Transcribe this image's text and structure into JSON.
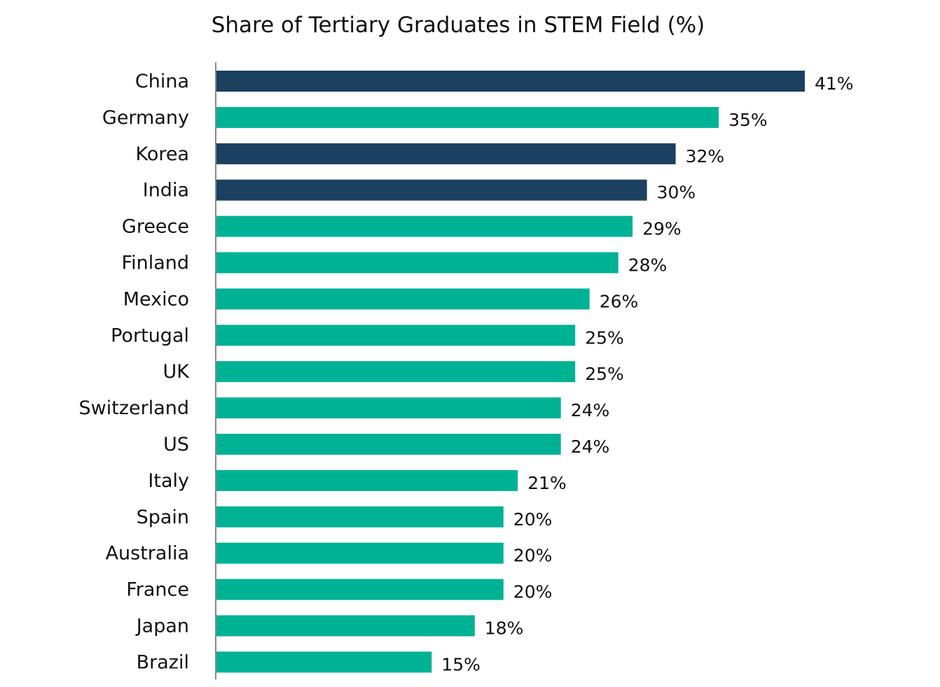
{
  "chart_data": {
    "type": "bar",
    "orientation": "horizontal",
    "title": "Share of Tertiary Graduates in STEM Field (%)",
    "xlabel": "",
    "ylabel": "",
    "xlim": [
      0,
      41
    ],
    "grid": false,
    "legend": null,
    "value_suffix": "%",
    "categories": [
      "China",
      "Germany",
      "Korea",
      "India",
      "Greece",
      "Finland",
      "Mexico",
      "Portugal",
      "UK",
      "Switzerland",
      "US",
      "Italy",
      "Spain",
      "Australia",
      "France",
      "Japan",
      "Brazil"
    ],
    "values": [
      41,
      35,
      32,
      30,
      29,
      28,
      26,
      25,
      25,
      24,
      24,
      21,
      20,
      20,
      20,
      18,
      15
    ],
    "highlighted": [
      true,
      false,
      true,
      true,
      false,
      false,
      false,
      false,
      false,
      false,
      false,
      false,
      false,
      false,
      false,
      false,
      false
    ],
    "colors": {
      "highlight": "#1b4060",
      "default": "#00b294",
      "axis": "#888888"
    }
  }
}
